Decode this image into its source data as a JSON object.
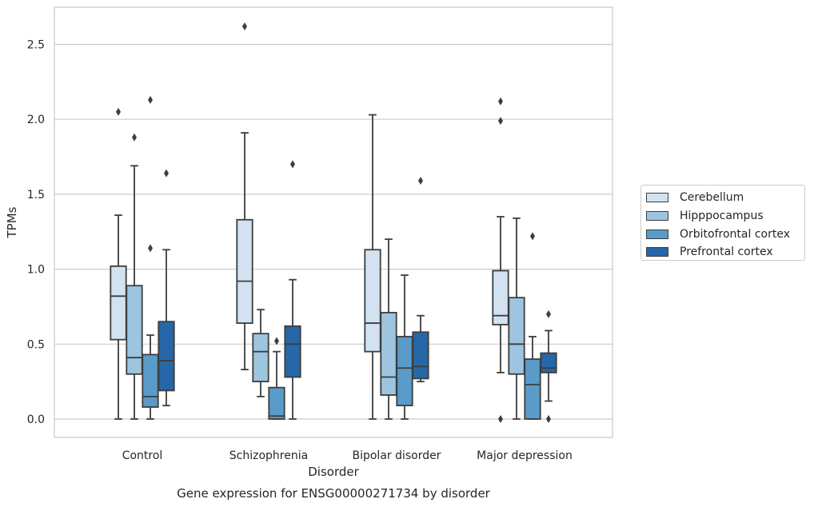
{
  "chart_data": {
    "type": "box",
    "title": "",
    "caption": "Gene expression for ENSG00000271734 by disorder",
    "xlabel": "Disorder",
    "ylabel": "TPMs",
    "ylim": [
      -0.12,
      2.72
    ],
    "yticks": [
      "0.0",
      "0.5",
      "1.0",
      "1.5",
      "2.0",
      "2.5"
    ],
    "ytick_values": [
      0,
      0.5,
      1.0,
      1.5,
      2.0,
      2.5
    ],
    "grid": "horizontal",
    "legend_position": "right",
    "categories": [
      "Control",
      "Schizophrenia",
      "Bipolar disorder",
      "Major depression"
    ],
    "series": [
      {
        "name": "Cerebellum",
        "color": "#d2e2f0",
        "boxes": [
          {
            "whisker_low": 0.0,
            "q1": 0.53,
            "median": 0.82,
            "q3": 1.02,
            "whisker_high": 1.36,
            "outliers": [
              2.05
            ]
          },
          {
            "whisker_low": 0.33,
            "q1": 0.64,
            "median": 0.92,
            "q3": 1.33,
            "whisker_high": 1.91,
            "outliers": [
              2.62
            ]
          },
          {
            "whisker_low": 0.0,
            "q1": 0.45,
            "median": 0.64,
            "q3": 1.13,
            "whisker_high": 2.03,
            "outliers": []
          },
          {
            "whisker_low": 0.31,
            "q1": 0.63,
            "median": 0.69,
            "q3": 0.99,
            "whisker_high": 1.35,
            "outliers": [
              0.0,
              1.99,
              2.12
            ]
          }
        ]
      },
      {
        "name": "Hipppocampus",
        "color": "#9dc5df",
        "boxes": [
          {
            "whisker_low": 0.0,
            "q1": 0.3,
            "median": 0.41,
            "q3": 0.89,
            "whisker_high": 1.69,
            "outliers": [
              1.88
            ]
          },
          {
            "whisker_low": 0.15,
            "q1": 0.25,
            "median": 0.45,
            "q3": 0.57,
            "whisker_high": 0.73,
            "outliers": []
          },
          {
            "whisker_low": 0.0,
            "q1": 0.16,
            "median": 0.28,
            "q3": 0.71,
            "whisker_high": 1.2,
            "outliers": []
          },
          {
            "whisker_low": 0.0,
            "q1": 0.3,
            "median": 0.5,
            "q3": 0.81,
            "whisker_high": 1.34,
            "outliers": []
          }
        ]
      },
      {
        "name": "Orbitofrontal cortex",
        "color": "#5a9bc9",
        "boxes": [
          {
            "whisker_low": 0.0,
            "q1": 0.08,
            "median": 0.15,
            "q3": 0.43,
            "whisker_high": 0.56,
            "outliers": [
              1.14,
              2.13
            ]
          },
          {
            "whisker_low": 0.0,
            "q1": 0.0,
            "median": 0.02,
            "q3": 0.21,
            "whisker_high": 0.45,
            "outliers": [
              0.52
            ]
          },
          {
            "whisker_low": 0.0,
            "q1": 0.09,
            "median": 0.34,
            "q3": 0.55,
            "whisker_high": 0.96,
            "outliers": []
          },
          {
            "whisker_low": 0.0,
            "q1": 0.0,
            "median": 0.23,
            "q3": 0.4,
            "whisker_high": 0.55,
            "outliers": [
              1.22
            ]
          }
        ]
      },
      {
        "name": "Prefrontal cortex",
        "color": "#2667a8",
        "boxes": [
          {
            "whisker_low": 0.09,
            "q1": 0.19,
            "median": 0.39,
            "q3": 0.65,
            "whisker_high": 1.13,
            "outliers": [
              1.64
            ]
          },
          {
            "whisker_low": 0.0,
            "q1": 0.28,
            "median": 0.5,
            "q3": 0.62,
            "whisker_high": 0.93,
            "outliers": [
              1.7
            ]
          },
          {
            "whisker_low": 0.25,
            "q1": 0.27,
            "median": 0.35,
            "q3": 0.58,
            "whisker_high": 0.69,
            "outliers": [
              1.59
            ]
          },
          {
            "whisker_low": 0.12,
            "q1": 0.31,
            "median": 0.34,
            "q3": 0.44,
            "whisker_high": 0.59,
            "outliers": [
              0.0,
              0.7
            ]
          }
        ]
      }
    ]
  }
}
